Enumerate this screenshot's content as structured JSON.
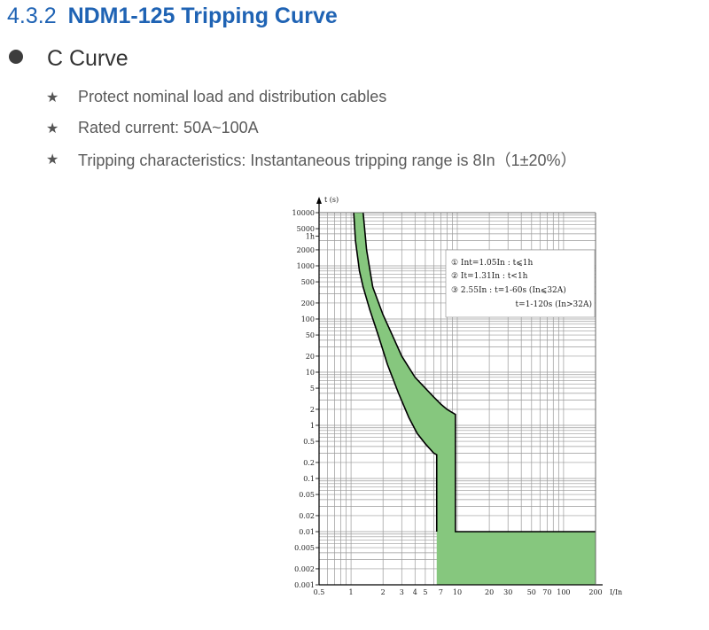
{
  "heading": {
    "number": "4.3.2",
    "title": "NDM1-125 Tripping Curve"
  },
  "curve_title": "C Curve",
  "bullets": [
    "Protect nominal load and distribution cables",
    "Rated current: 50A~100A",
    "Tripping characteristics: Instantaneous tripping range is 8In（1±20%）"
  ],
  "icons": {
    "bullet": "filled-circle-icon",
    "list": "star-icon"
  },
  "colors": {
    "heading": "#1f63b4",
    "band_fill": "#86c77e",
    "curve": "#000000"
  },
  "legend": [
    "①  Int=1.05In : t⩽1h",
    "②  It=1.31In : t<1h",
    "③  2.55In : t=1-60s (In⩽32A)",
    "t=1-120s (In>32A)"
  ],
  "chart_data": {
    "type": "area",
    "title": "",
    "xlabel": "I/In",
    "ylabel": "t (s)",
    "xscale": "log",
    "yscale": "log",
    "xlim": [
      0.5,
      200
    ],
    "ylim": [
      0.001,
      10000
    ],
    "grid": true,
    "x_ticks": [
      {
        "v": 0.5,
        "label": "0.5"
      },
      {
        "v": 1,
        "label": "1"
      },
      {
        "v": 2,
        "label": "2"
      },
      {
        "v": 3,
        "label": "3"
      },
      {
        "v": 4,
        "label": "4"
      },
      {
        "v": 5,
        "label": "5"
      },
      {
        "v": 7,
        "label": "7"
      },
      {
        "v": 10,
        "label": "10"
      },
      {
        "v": 20,
        "label": "20"
      },
      {
        "v": 30,
        "label": "30"
      },
      {
        "v": 50,
        "label": "50"
      },
      {
        "v": 70,
        "label": "70"
      },
      {
        "v": 100,
        "label": "100"
      },
      {
        "v": 200,
        "label": "200"
      }
    ],
    "y_ticks": [
      {
        "v": 10000,
        "label": "10000"
      },
      {
        "v": 5000,
        "label": "5000"
      },
      {
        "v": 3600,
        "label": "1h"
      },
      {
        "v": 2000,
        "label": "2000"
      },
      {
        "v": 1000,
        "label": "1000"
      },
      {
        "v": 500,
        "label": "500"
      },
      {
        "v": 200,
        "label": "200"
      },
      {
        "v": 100,
        "label": "100"
      },
      {
        "v": 50,
        "label": "50"
      },
      {
        "v": 20,
        "label": "20"
      },
      {
        "v": 10,
        "label": "10"
      },
      {
        "v": 5,
        "label": "5"
      },
      {
        "v": 2,
        "label": "2"
      },
      {
        "v": 1,
        "label": "1"
      },
      {
        "v": 0.5,
        "label": "0.5"
      },
      {
        "v": 0.2,
        "label": "0.2"
      },
      {
        "v": 0.1,
        "label": "0.1"
      },
      {
        "v": 0.05,
        "label": "0.05"
      },
      {
        "v": 0.02,
        "label": "0.02"
      },
      {
        "v": 0.01,
        "label": "0.01"
      },
      {
        "v": 0.005,
        "label": "0.005"
      },
      {
        "v": 0.002,
        "label": "0.002"
      },
      {
        "v": 0.001,
        "label": "0.001"
      }
    ],
    "series": [
      {
        "role": "lower",
        "x": [
          1.06,
          1.1,
          1.2,
          1.3,
          1.5,
          1.8,
          2.2,
          2.8,
          3.5,
          4.2,
          5.0,
          6.0,
          6.4,
          6.4,
          6.4
        ],
        "y": [
          10000,
          3000,
          800,
          400,
          150,
          50,
          14,
          4,
          1.4,
          0.7,
          0.45,
          0.3,
          0.28,
          0.01,
          0.001
        ]
      },
      {
        "role": "upper",
        "x": [
          1.3,
          1.4,
          1.6,
          2.0,
          2.5,
          3.0,
          4.0,
          5.0,
          6.0,
          7.0,
          8.0,
          9.6,
          9.6,
          9.6,
          200
        ],
        "y": [
          10000,
          2000,
          400,
          120,
          45,
          20,
          8,
          5,
          3.4,
          2.5,
          2.0,
          1.6,
          0.01,
          0.01,
          0.01
        ]
      }
    ]
  }
}
